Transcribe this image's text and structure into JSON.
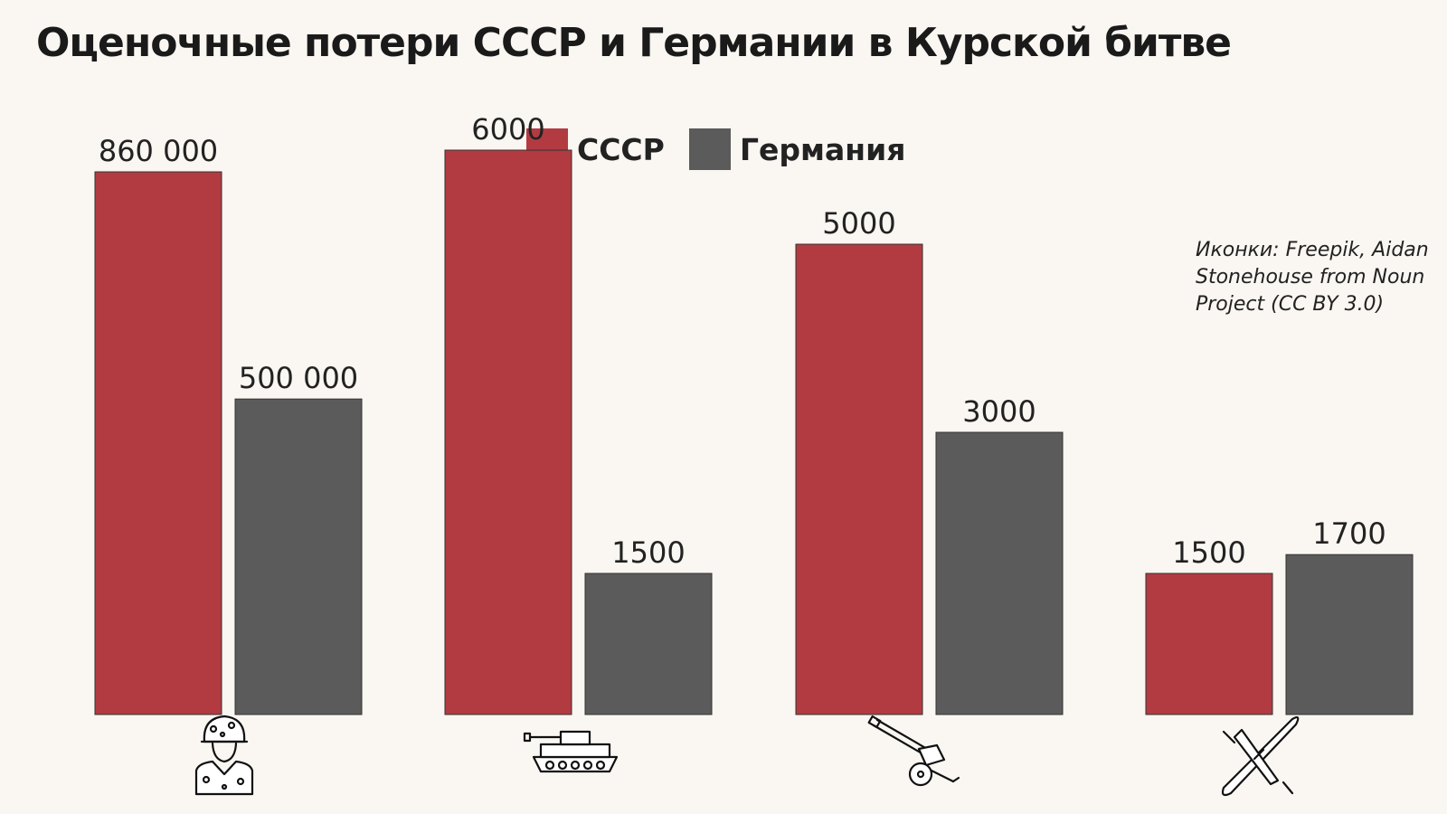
{
  "chart_data": {
    "type": "bar",
    "title": "Оценочные потери СССР и Германии в Курской битве",
    "categories": [
      "soldier-icon",
      "tank-icon",
      "artillery-icon",
      "aircraft-icon"
    ],
    "series": [
      {
        "name": "СССР",
        "color": "#b23b42",
        "values": [
          860000,
          6000,
          5000,
          1500
        ],
        "labels": [
          "860 000",
          "6000",
          "5000",
          "1500"
        ]
      },
      {
        "name": "Германия",
        "color": "#5b5b5b",
        "values": [
          500000,
          1500,
          3000,
          1700
        ],
        "labels": [
          "500 000",
          "1500",
          "3000",
          "1700"
        ]
      }
    ],
    "legend_position": "top",
    "grid": false,
    "note": "Bar heights are not linear: categories use an implicitly non-uniform scale as in the original infographic"
  },
  "credit": "Иконки: Freepik, Aidan Stonehouse from Noun Project (CC BY 3.0)"
}
